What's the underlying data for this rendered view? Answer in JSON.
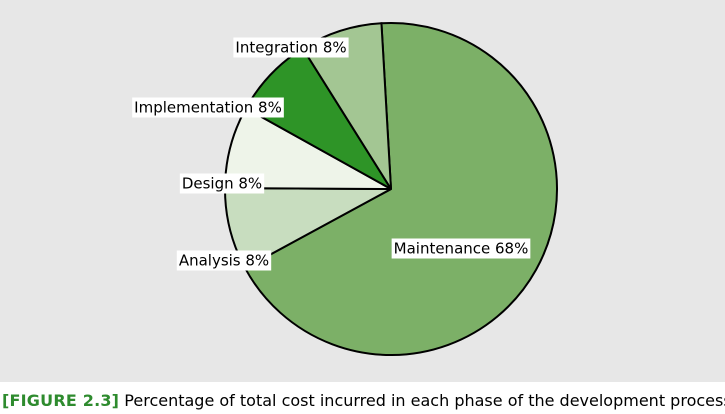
{
  "chart_data": {
    "type": "pie",
    "title": "",
    "slices": [
      {
        "label": "Maintenance 68%",
        "value": 68,
        "color": "#7cb067"
      },
      {
        "label": "Analysis 8%",
        "value": 8,
        "color": "#c8ddbf"
      },
      {
        "label": "Design 8%",
        "value": 8,
        "color": "#eef4e9"
      },
      {
        "label": "Implementation 8%",
        "value": 8,
        "color": "#2e9427"
      },
      {
        "label": "Integration 8%",
        "value": 8,
        "color": "#a3c693"
      }
    ],
    "legend": "none"
  },
  "caption": {
    "tag": "[FIGURE 2.3]",
    "text": "Percentage of total cost incurred in each phase of the development process"
  }
}
